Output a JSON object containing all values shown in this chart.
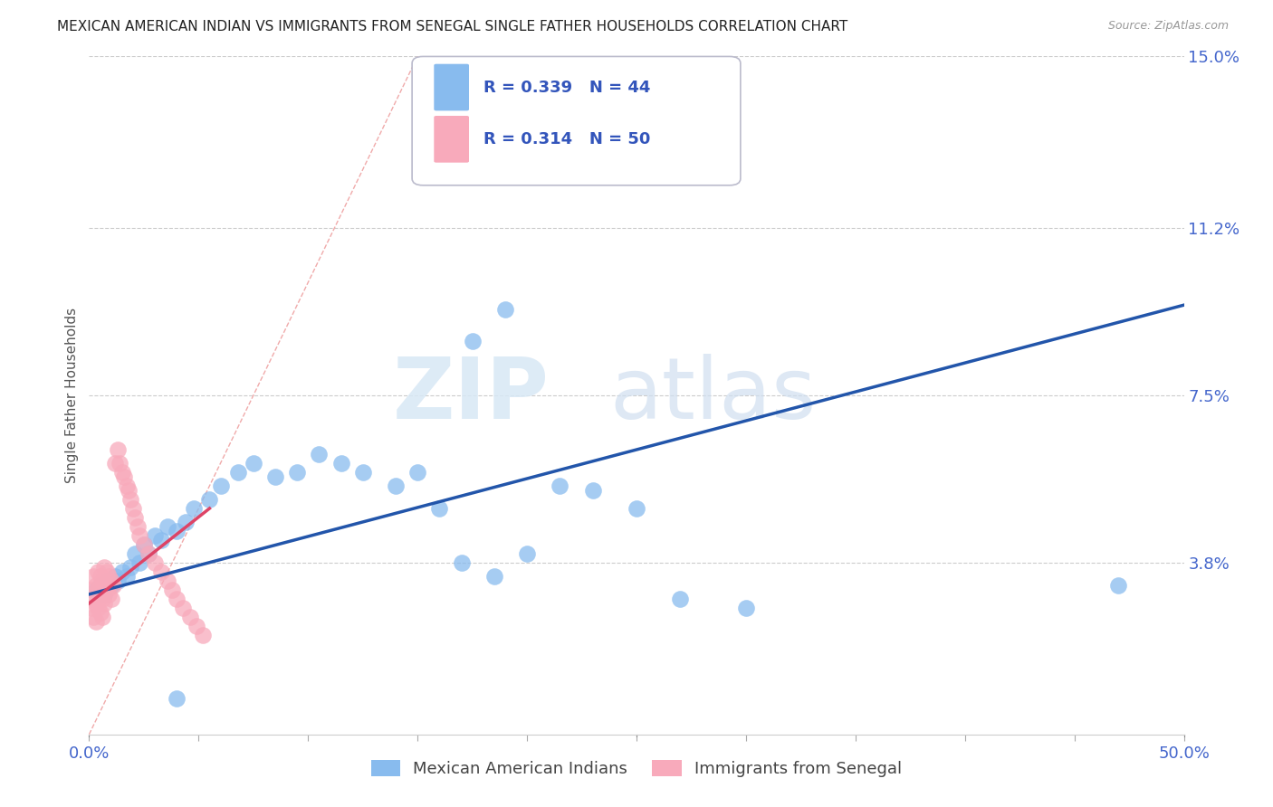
{
  "title": "MEXICAN AMERICAN INDIAN VS IMMIGRANTS FROM SENEGAL SINGLE FATHER HOUSEHOLDS CORRELATION CHART",
  "source": "Source: ZipAtlas.com",
  "ylabel": "Single Father Households",
  "xlim": [
    0.0,
    0.5
  ],
  "ylim": [
    0.0,
    0.15
  ],
  "ytick_vals": [
    0.038,
    0.075,
    0.112,
    0.15
  ],
  "ytick_labels": [
    "3.8%",
    "7.5%",
    "11.2%",
    "15.0%"
  ],
  "grid_color": "#cccccc",
  "background_color": "#ffffff",
  "blue_color": "#88bbee",
  "pink_color": "#f8aabb",
  "blue_line_color": "#2255aa",
  "pink_line_color": "#dd4466",
  "diag_color": "#ddbbbb",
  "legend_R_blue": "0.339",
  "legend_N_blue": "44",
  "legend_R_pink": "0.314",
  "legend_N_pink": "50",
  "watermark_zip": "ZIP",
  "watermark_atlas": "atlas",
  "blue_scatter_x": [
    0.003,
    0.005,
    0.007,
    0.008,
    0.01,
    0.012,
    0.013,
    0.015,
    0.017,
    0.019,
    0.021,
    0.023,
    0.025,
    0.027,
    0.03,
    0.033,
    0.036,
    0.04,
    0.044,
    0.048,
    0.055,
    0.06,
    0.068,
    0.075,
    0.085,
    0.095,
    0.105,
    0.115,
    0.125,
    0.14,
    0.15,
    0.16,
    0.17,
    0.185,
    0.2,
    0.215,
    0.23,
    0.25,
    0.27,
    0.3,
    0.175,
    0.19,
    0.04,
    0.47
  ],
  "blue_scatter_y": [
    0.032,
    0.033,
    0.031,
    0.034,
    0.033,
    0.035,
    0.034,
    0.036,
    0.035,
    0.037,
    0.04,
    0.038,
    0.042,
    0.04,
    0.044,
    0.043,
    0.046,
    0.045,
    0.047,
    0.05,
    0.052,
    0.055,
    0.058,
    0.06,
    0.057,
    0.058,
    0.062,
    0.06,
    0.058,
    0.055,
    0.058,
    0.05,
    0.038,
    0.035,
    0.04,
    0.055,
    0.054,
    0.05,
    0.03,
    0.028,
    0.087,
    0.094,
    0.008,
    0.033
  ],
  "pink_scatter_x": [
    0.001,
    0.001,
    0.002,
    0.002,
    0.002,
    0.003,
    0.003,
    0.003,
    0.004,
    0.004,
    0.004,
    0.005,
    0.005,
    0.005,
    0.006,
    0.006,
    0.006,
    0.007,
    0.007,
    0.007,
    0.008,
    0.008,
    0.009,
    0.009,
    0.01,
    0.01,
    0.011,
    0.012,
    0.013,
    0.014,
    0.015,
    0.016,
    0.017,
    0.018,
    0.019,
    0.02,
    0.021,
    0.022,
    0.023,
    0.025,
    0.027,
    0.03,
    0.033,
    0.036,
    0.038,
    0.04,
    0.043,
    0.046,
    0.049,
    0.052
  ],
  "pink_scatter_y": [
    0.032,
    0.028,
    0.035,
    0.03,
    0.026,
    0.033,
    0.029,
    0.025,
    0.036,
    0.032,
    0.028,
    0.035,
    0.031,
    0.027,
    0.034,
    0.03,
    0.026,
    0.037,
    0.033,
    0.029,
    0.036,
    0.032,
    0.035,
    0.031,
    0.034,
    0.03,
    0.033,
    0.06,
    0.063,
    0.06,
    0.058,
    0.057,
    0.055,
    0.054,
    0.052,
    0.05,
    0.048,
    0.046,
    0.044,
    0.042,
    0.04,
    0.038,
    0.036,
    0.034,
    0.032,
    0.03,
    0.028,
    0.026,
    0.024,
    0.022
  ],
  "blue_line_x": [
    0.0,
    0.5
  ],
  "blue_line_y": [
    0.031,
    0.095
  ],
  "pink_line_x": [
    0.0,
    0.055
  ],
  "pink_line_y": [
    0.029,
    0.05
  ]
}
